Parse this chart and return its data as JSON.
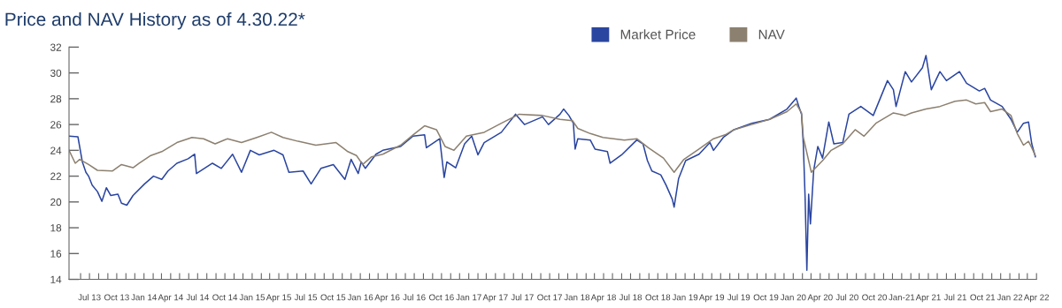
{
  "chart_data": {
    "type": "line",
    "title": "Price and NAV History as of 4.30.22*",
    "xlim": [
      "2013-04-23",
      "2022-04-01"
    ],
    "ylim": [
      14,
      32
    ],
    "yticks": [
      14,
      16,
      18,
      20,
      22,
      24,
      26,
      28,
      30,
      32
    ],
    "xticks": [
      {
        "value": "2013-06-01",
        "label": null
      },
      {
        "value": "2013-07-01",
        "label": "Jul 13"
      },
      {
        "value": "2013-08-01",
        "label": null
      },
      {
        "value": "2013-09-01",
        "label": null
      },
      {
        "value": "2013-10-01",
        "label": "Oct 13"
      },
      {
        "value": "2013-11-01",
        "label": null
      },
      {
        "value": "2013-12-01",
        "label": null
      },
      {
        "value": "2014-01-01",
        "label": "Jan 14"
      },
      {
        "value": "2014-02-01",
        "label": null
      },
      {
        "value": "2014-03-01",
        "label": null
      },
      {
        "value": "2014-04-01",
        "label": "Apr 14"
      },
      {
        "value": "2014-05-01",
        "label": null
      },
      {
        "value": "2014-06-01",
        "label": null
      },
      {
        "value": "2014-07-01",
        "label": "Jul 14"
      },
      {
        "value": "2014-08-01",
        "label": null
      },
      {
        "value": "2014-09-01",
        "label": null
      },
      {
        "value": "2014-10-01",
        "label": "Oct 14"
      },
      {
        "value": "2014-11-01",
        "label": null
      },
      {
        "value": "2014-12-01",
        "label": null
      },
      {
        "value": "2015-01-01",
        "label": "Jan 15"
      },
      {
        "value": "2015-02-01",
        "label": null
      },
      {
        "value": "2015-03-01",
        "label": null
      },
      {
        "value": "2015-04-01",
        "label": "Apr 15"
      },
      {
        "value": "2015-05-01",
        "label": null
      },
      {
        "value": "2015-06-01",
        "label": null
      },
      {
        "value": "2015-07-01",
        "label": "Jul 15"
      },
      {
        "value": "2015-08-01",
        "label": null
      },
      {
        "value": "2015-09-01",
        "label": null
      },
      {
        "value": "2015-10-01",
        "label": "Oct 15"
      },
      {
        "value": "2015-11-01",
        "label": null
      },
      {
        "value": "2015-12-01",
        "label": null
      },
      {
        "value": "2016-01-01",
        "label": "Jan 16"
      },
      {
        "value": "2016-02-01",
        "label": null
      },
      {
        "value": "2016-03-01",
        "label": null
      },
      {
        "value": "2016-04-01",
        "label": "Apr 16"
      },
      {
        "value": "2016-05-01",
        "label": null
      },
      {
        "value": "2016-06-01",
        "label": null
      },
      {
        "value": "2016-07-01",
        "label": "Jul 16"
      },
      {
        "value": "2016-08-01",
        "label": null
      },
      {
        "value": "2016-09-01",
        "label": null
      },
      {
        "value": "2016-10-01",
        "label": "Oct 16"
      },
      {
        "value": "2016-11-01",
        "label": null
      },
      {
        "value": "2016-12-01",
        "label": null
      },
      {
        "value": "2017-01-01",
        "label": "Jan 17"
      },
      {
        "value": "2017-02-01",
        "label": null
      },
      {
        "value": "2017-03-01",
        "label": null
      },
      {
        "value": "2017-04-01",
        "label": "Apr 17"
      },
      {
        "value": "2017-05-01",
        "label": null
      },
      {
        "value": "2017-06-01",
        "label": null
      },
      {
        "value": "2017-07-01",
        "label": "Jul 17"
      },
      {
        "value": "2017-08-01",
        "label": null
      },
      {
        "value": "2017-09-01",
        "label": null
      },
      {
        "value": "2017-10-01",
        "label": "Oct 17"
      },
      {
        "value": "2017-11-01",
        "label": null
      },
      {
        "value": "2017-12-01",
        "label": null
      },
      {
        "value": "2018-01-01",
        "label": "Jan 18"
      },
      {
        "value": "2018-02-01",
        "label": null
      },
      {
        "value": "2018-03-01",
        "label": null
      },
      {
        "value": "2018-04-01",
        "label": "Apr 18"
      },
      {
        "value": "2018-05-01",
        "label": null
      },
      {
        "value": "2018-06-01",
        "label": null
      },
      {
        "value": "2018-07-01",
        "label": "Jul 18"
      },
      {
        "value": "2018-08-01",
        "label": null
      },
      {
        "value": "2018-09-01",
        "label": null
      },
      {
        "value": "2018-10-01",
        "label": "Oct 18"
      },
      {
        "value": "2018-11-01",
        "label": null
      },
      {
        "value": "2018-12-01",
        "label": null
      },
      {
        "value": "2019-01-01",
        "label": "Jan 19"
      },
      {
        "value": "2019-02-01",
        "label": null
      },
      {
        "value": "2019-03-01",
        "label": null
      },
      {
        "value": "2019-04-01",
        "label": "Apr 19"
      },
      {
        "value": "2019-05-01",
        "label": null
      },
      {
        "value": "2019-06-01",
        "label": null
      },
      {
        "value": "2019-07-01",
        "label": "Jul 19"
      },
      {
        "value": "2019-08-01",
        "label": null
      },
      {
        "value": "2019-09-01",
        "label": null
      },
      {
        "value": "2019-10-01",
        "label": "Oct 19"
      },
      {
        "value": "2019-11-01",
        "label": null
      },
      {
        "value": "2019-12-01",
        "label": null
      },
      {
        "value": "2020-01-01",
        "label": "Jan 20"
      },
      {
        "value": "2020-02-01",
        "label": null
      },
      {
        "value": "2020-03-01",
        "label": null
      },
      {
        "value": "2020-04-01",
        "label": "Apr 20"
      },
      {
        "value": "2020-05-01",
        "label": null
      },
      {
        "value": "2020-06-01",
        "label": null
      },
      {
        "value": "2020-07-01",
        "label": "Jul 20"
      },
      {
        "value": "2020-08-01",
        "label": null
      },
      {
        "value": "2020-09-01",
        "label": null
      },
      {
        "value": "2020-10-01",
        "label": "Oct 20"
      },
      {
        "value": "2020-11-01",
        "label": null
      },
      {
        "value": "2020-12-01",
        "label": null
      },
      {
        "value": "2021-01-01",
        "label": "Jan-21"
      },
      {
        "value": "2021-02-01",
        "label": null
      },
      {
        "value": "2021-03-01",
        "label": null
      },
      {
        "value": "2021-04-01",
        "label": "Apr 21"
      },
      {
        "value": "2021-05-01",
        "label": null
      },
      {
        "value": "2021-06-01",
        "label": null
      },
      {
        "value": "2021-07-01",
        "label": "Jul 21"
      },
      {
        "value": "2021-08-01",
        "label": null
      },
      {
        "value": "2021-09-01",
        "label": null
      },
      {
        "value": "2021-10-01",
        "label": "Oct 21"
      },
      {
        "value": "2021-11-01",
        "label": null
      },
      {
        "value": "2021-12-01",
        "label": null
      },
      {
        "value": "2022-01-01",
        "label": "Jan 22"
      },
      {
        "value": "2022-02-01",
        "label": null
      },
      {
        "value": "2022-03-01",
        "label": null
      },
      {
        "value": "2022-04-01",
        "label": "Apr 22"
      }
    ],
    "grid": false,
    "legend": "top",
    "marker": "none",
    "line_style": "solid",
    "series": [
      {
        "name": "Market Price",
        "color": "#2a45a0",
        "x": [
          "2013-04-23",
          "2013-05-23",
          "2013-06-07",
          "2013-06-19",
          "2013-06-28",
          "2013-07-10",
          "2013-07-28",
          "2013-08-12",
          "2013-08-27",
          "2013-09-11",
          "2013-10-05",
          "2013-10-17",
          "2013-11-04",
          "2013-11-25",
          "2014-01-03",
          "2014-02-02",
          "2014-03-02",
          "2014-03-23",
          "2014-04-22",
          "2014-05-30",
          "2014-06-21",
          "2014-06-27",
          "2014-08-20",
          "2014-09-19",
          "2014-10-27",
          "2014-11-26",
          "2014-12-26",
          "2015-01-25",
          "2015-03-16",
          "2015-04-15",
          "2015-05-05",
          "2015-06-22",
          "2015-07-19",
          "2015-08-21",
          "2015-10-02",
          "2015-11-10",
          "2015-12-01",
          "2015-12-25",
          "2016-01-04",
          "2016-01-18",
          "2016-02-23",
          "2016-03-17",
          "2016-05-16",
          "2016-06-27",
          "2016-08-05",
          "2016-08-11",
          "2016-09-25",
          "2016-10-10",
          "2016-10-19",
          "2016-11-18",
          "2016-12-18",
          "2017-01-11",
          "2017-02-01",
          "2017-02-22",
          "2017-04-21",
          "2017-05-15",
          "2017-06-08",
          "2017-07-08",
          "2017-09-07",
          "2017-09-27",
          "2017-11-05",
          "2017-11-17",
          "2017-12-05",
          "2017-12-20",
          "2017-12-26",
          "2018-01-04",
          "2018-02-15",
          "2018-03-03",
          "2018-04-14",
          "2018-04-23",
          "2018-06-01",
          "2018-07-22",
          "2018-08-12",
          "2018-08-27",
          "2018-09-11",
          "2018-10-11",
          "2018-10-29",
          "2018-11-19",
          "2018-11-25",
          "2018-12-10",
          "2019-01-03",
          "2019-02-17",
          "2019-03-26",
          "2019-04-07",
          "2019-05-10",
          "2019-06-15",
          "2019-08-14",
          "2019-10-13",
          "2019-12-11",
          "2020-01-11",
          "2020-01-20",
          "2020-01-29",
          "2020-02-04",
          "2020-02-10",
          "2020-02-16",
          "2020-02-22",
          "2020-02-28",
          "2020-03-10",
          "2020-03-24",
          "2020-04-09",
          "2020-04-30",
          "2020-05-17",
          "2020-06-16",
          "2020-07-07",
          "2020-08-16",
          "2020-09-27",
          "2020-11-14",
          "2020-12-04",
          "2020-12-13",
          "2021-01-13",
          "2021-02-03",
          "2021-03-12",
          "2021-03-24",
          "2021-04-11",
          "2021-05-10",
          "2021-06-01",
          "2021-07-15",
          "2021-08-08",
          "2021-09-20",
          "2021-10-08",
          "2021-10-28",
          "2021-12-06",
          "2022-01-05",
          "2022-01-26",
          "2022-02-16",
          "2022-03-05",
          "2022-03-16",
          "2022-03-28"
        ],
        "values": [
          25.1,
          25.05,
          23.1,
          22.3,
          22.0,
          21.3,
          20.8,
          20.05,
          21.1,
          20.5,
          20.6,
          19.9,
          19.75,
          20.5,
          21.4,
          22.0,
          21.75,
          22.4,
          23.0,
          23.35,
          23.7,
          22.2,
          23.0,
          22.6,
          23.7,
          22.3,
          24.0,
          23.65,
          24.0,
          23.65,
          22.3,
          22.4,
          21.4,
          22.6,
          22.9,
          21.75,
          23.3,
          22.2,
          23.1,
          22.6,
          23.7,
          24.0,
          24.3,
          25.1,
          25.2,
          24.2,
          24.9,
          21.9,
          23.1,
          22.65,
          24.5,
          25.1,
          23.65,
          24.6,
          25.4,
          26.1,
          26.8,
          26.0,
          26.6,
          26.0,
          26.8,
          27.2,
          26.7,
          26.1,
          24.1,
          24.9,
          24.8,
          24.1,
          23.9,
          23.0,
          23.65,
          24.8,
          24.5,
          23.2,
          22.4,
          22.1,
          21.3,
          20.2,
          19.6,
          21.8,
          23.2,
          23.7,
          24.6,
          24.0,
          25.0,
          25.6,
          26.1,
          26.4,
          27.2,
          28.05,
          27.4,
          26.8,
          24.5,
          20.4,
          14.7,
          20.6,
          18.3,
          22.45,
          24.3,
          23.4,
          26.2,
          24.5,
          24.6,
          26.8,
          27.4,
          26.7,
          29.4,
          28.7,
          27.4,
          30.1,
          29.3,
          30.4,
          31.35,
          28.7,
          30.1,
          29.4,
          30.1,
          29.2,
          28.6,
          28.8,
          27.9,
          27.4,
          26.4,
          25.4,
          26.1,
          26.2,
          24.5,
          23.5
        ]
      },
      {
        "name": "NAV",
        "color": "#8c8070",
        "x": [
          "2013-04-23",
          "2013-05-14",
          "2013-05-29",
          "2013-06-28",
          "2013-07-28",
          "2013-09-17",
          "2013-10-17",
          "2013-11-25",
          "2013-12-16",
          "2014-01-24",
          "2014-03-02",
          "2014-04-22",
          "2014-06-12",
          "2014-07-21",
          "2014-08-29",
          "2014-10-10",
          "2014-11-26",
          "2015-01-17",
          "2015-03-07",
          "2015-04-15",
          "2015-06-05",
          "2015-08-04",
          "2015-10-11",
          "2015-11-20",
          "2015-12-19",
          "2016-01-09",
          "2016-02-08",
          "2016-03-17",
          "2016-05-16",
          "2016-06-27",
          "2016-08-05",
          "2016-09-14",
          "2016-10-13",
          "2016-11-12",
          "2016-12-24",
          "2017-02-22",
          "2017-04-21",
          "2017-06-20",
          "2017-09-07",
          "2017-11-05",
          "2017-12-17",
          "2018-01-04",
          "2018-02-15",
          "2018-03-30",
          "2018-06-10",
          "2018-07-22",
          "2018-08-30",
          "2018-10-20",
          "2018-11-25",
          "2018-12-28",
          "2019-02-17",
          "2019-04-07",
          "2019-05-16",
          "2019-06-15",
          "2019-08-14",
          "2019-10-13",
          "2019-12-11",
          "2020-01-11",
          "2020-01-29",
          "2020-02-04",
          "2020-03-02",
          "2020-04-09",
          "2020-05-08",
          "2020-06-16",
          "2020-07-28",
          "2020-08-27",
          "2020-10-06",
          "2020-12-04",
          "2021-01-13",
          "2021-02-03",
          "2021-03-24",
          "2021-05-10",
          "2021-06-30",
          "2021-08-08",
          "2021-09-08",
          "2021-10-08",
          "2021-10-28",
          "2021-12-06",
          "2022-01-05",
          "2022-01-26",
          "2022-02-16",
          "2022-03-05",
          "2022-03-16",
          "2022-03-28"
        ],
        "values": [
          24.0,
          23.0,
          23.3,
          22.9,
          22.45,
          22.4,
          22.9,
          22.65,
          23.0,
          23.6,
          23.9,
          24.6,
          25.0,
          24.9,
          24.5,
          24.9,
          24.6,
          25.0,
          25.4,
          25.0,
          24.7,
          24.4,
          24.6,
          23.9,
          23.6,
          22.9,
          23.5,
          23.7,
          24.4,
          25.2,
          25.9,
          25.6,
          24.3,
          24.0,
          25.1,
          25.4,
          26.1,
          26.8,
          26.7,
          26.4,
          26.3,
          25.7,
          25.3,
          25.0,
          24.8,
          24.9,
          24.2,
          23.4,
          22.3,
          23.3,
          24.1,
          24.9,
          25.2,
          25.6,
          26.0,
          26.4,
          27.0,
          27.6,
          26.9,
          25.0,
          22.3,
          23.2,
          24.0,
          24.5,
          25.6,
          25.1,
          26.1,
          26.9,
          26.7,
          26.9,
          27.2,
          27.4,
          27.8,
          27.9,
          27.6,
          27.7,
          27.0,
          27.2,
          26.7,
          25.3,
          24.4,
          24.7,
          24.2,
          23.6
        ]
      }
    ]
  }
}
